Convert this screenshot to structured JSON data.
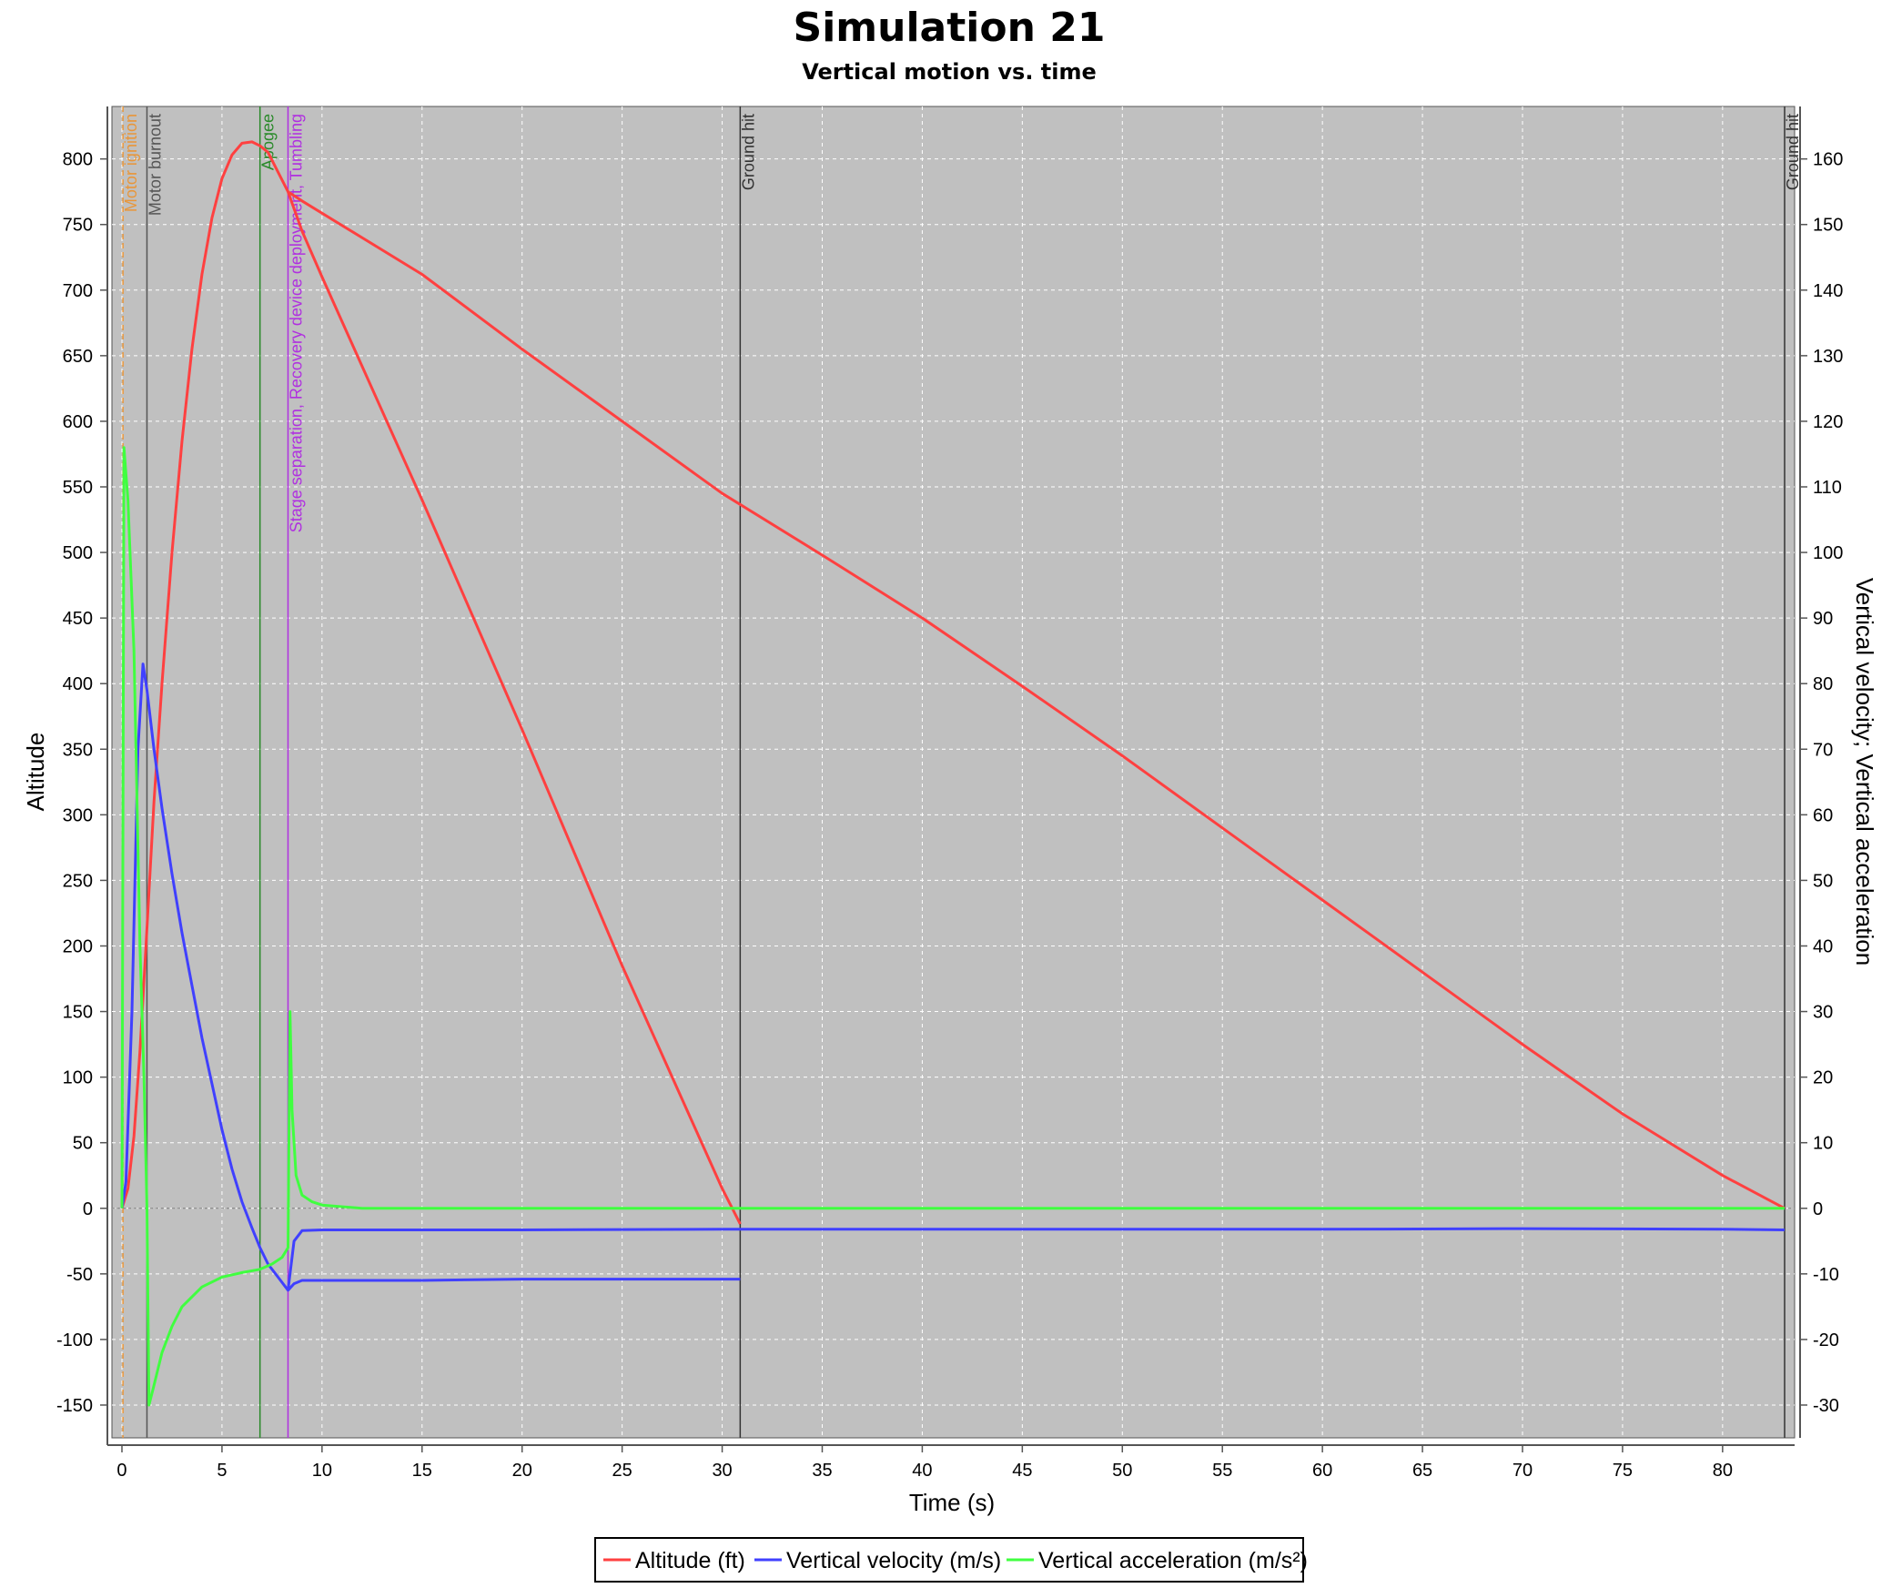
{
  "chart_data": {
    "type": "line",
    "title": "Simulation 21",
    "subtitle": "Vertical motion vs. time",
    "xlabel": "Time (s)",
    "ylabel_left": "Altitude",
    "ylabel_right": "Vertical velocity; Vertical acceleration",
    "xlim": [
      -0.5,
      83.6
    ],
    "ylim_left": [
      -175,
      840
    ],
    "ylim_right": [
      -35,
      168
    ],
    "x_ticks": [
      0,
      5,
      10,
      15,
      20,
      25,
      30,
      35,
      40,
      45,
      50,
      55,
      60,
      65,
      70,
      75,
      80
    ],
    "y_ticks_left": [
      -150,
      -100,
      -50,
      0,
      50,
      100,
      150,
      200,
      250,
      300,
      350,
      400,
      450,
      500,
      550,
      600,
      650,
      700,
      750,
      800
    ],
    "y_ticks_right": [
      -30,
      -20,
      -10,
      0,
      10,
      20,
      30,
      40,
      50,
      60,
      70,
      80,
      90,
      100,
      110,
      120,
      130,
      140,
      150,
      160
    ],
    "grid": true,
    "legend_position": "bottom-center",
    "colors": {
      "plot_background": "#c0c0c0",
      "grid": "#ffffff",
      "altitude": "#ff4040",
      "velocity": "#4040ff",
      "acceleration": "#40ff40"
    },
    "events": [
      {
        "label": "Motor ignition",
        "t": 0.05,
        "color": "#e8963a"
      },
      {
        "label": "Motor burnout",
        "t": 1.25,
        "color": "#555555"
      },
      {
        "label": "Apogee",
        "t": 6.9,
        "color": "#2a8a2a"
      },
      {
        "label": "Stage separation, Recovery device deployment, Tumbling",
        "t": 8.3,
        "color": "#b030e0"
      },
      {
        "label": "Ground hit",
        "t": 30.9,
        "color": "#333333"
      },
      {
        "label": "Ground hit",
        "t": 83.1,
        "color": "#333333"
      }
    ],
    "series": [
      {
        "name": "Altitude (ft)",
        "axis": "left",
        "color": "#ff4040",
        "x": [
          0,
          0.3,
          0.6,
          0.9,
          1.2,
          1.6,
          2.0,
          2.5,
          3.0,
          3.5,
          4.0,
          4.5,
          5.0,
          5.5,
          6.0,
          6.5,
          6.9,
          7.3,
          7.8,
          8.3,
          9.0,
          10,
          15,
          20,
          25,
          30,
          30.9
        ],
        "y": [
          0,
          15,
          55,
          120,
          200,
          310,
          400,
          500,
          585,
          655,
          712,
          755,
          785,
          803,
          812,
          813,
          810,
          805,
          790,
          775,
          745,
          710,
          540,
          365,
          185,
          15,
          -12
        ]
      },
      {
        "name": "Altitude (ft)",
        "axis": "left",
        "color": "#ff4040",
        "x": [
          8.3,
          9.0,
          15,
          20,
          25,
          30,
          35,
          40,
          45,
          50,
          55,
          60,
          65,
          70,
          75,
          80,
          83.1
        ],
        "y": [
          775,
          768,
          712,
          655,
          600,
          545,
          498,
          450,
          398,
          345,
          290,
          235,
          180,
          125,
          72,
          25,
          0
        ]
      },
      {
        "name": "Vertical velocity (m/s)",
        "axis": "right",
        "color": "#4040ff",
        "x": [
          0,
          0.2,
          0.5,
          0.8,
          1.05,
          1.25,
          1.6,
          2.0,
          2.5,
          3.0,
          3.5,
          4.0,
          4.5,
          5.0,
          5.5,
          6.0,
          6.5,
          6.9,
          7.3,
          7.8,
          8.3,
          8.6,
          9.0,
          10,
          15,
          20,
          25,
          30,
          30.9
        ],
        "y": [
          0,
          4,
          30,
          70,
          83,
          79,
          70,
          61,
          51,
          42,
          34,
          26,
          19,
          12,
          6,
          1,
          -3,
          -6,
          -8.5,
          -10.5,
          -12.5,
          -11.5,
          -11,
          -11,
          -11,
          -10.8,
          -10.8,
          -10.8,
          -10.8
        ]
      },
      {
        "name": "Vertical velocity (m/s)",
        "axis": "right",
        "color": "#4040ff",
        "x": [
          8.3,
          8.6,
          9.0,
          10,
          20,
          30,
          40,
          50,
          60,
          70,
          80,
          83.1
        ],
        "y": [
          -12.5,
          -5,
          -3.4,
          -3.3,
          -3.3,
          -3.2,
          -3.2,
          -3.2,
          -3.2,
          -3.1,
          -3.2,
          -3.3
        ]
      },
      {
        "name": "Vertical acceleration (m/s²)",
        "axis": "right",
        "color": "#40ff40",
        "x": [
          0,
          0.1,
          0.3,
          0.6,
          0.9,
          1.1,
          1.25,
          1.35,
          1.6,
          2.0,
          2.5,
          3.0,
          4.0,
          5.0,
          6.0,
          6.9,
          7.5,
          8.0,
          8.3,
          8.4,
          8.5,
          8.7,
          9.0,
          9.5,
          10,
          12,
          15,
          20,
          25,
          30,
          35,
          40,
          45,
          50,
          55,
          60,
          65,
          70,
          75,
          80,
          83.1
        ],
        "y": [
          0,
          116,
          108,
          85,
          40,
          20,
          0,
          -30,
          -27,
          -22,
          -18,
          -15,
          -12,
          -10.5,
          -9.8,
          -9.3,
          -8.5,
          -7.5,
          -6,
          30,
          15,
          5,
          2,
          1,
          0.5,
          0,
          0,
          0,
          0,
          0,
          0,
          0,
          0,
          0,
          0,
          0,
          0,
          0,
          0,
          0,
          0
        ]
      }
    ]
  },
  "legend": {
    "items": [
      "Altitude (ft)",
      "Vertical velocity (m/s)",
      "Vertical acceleration (m/s²)"
    ]
  }
}
